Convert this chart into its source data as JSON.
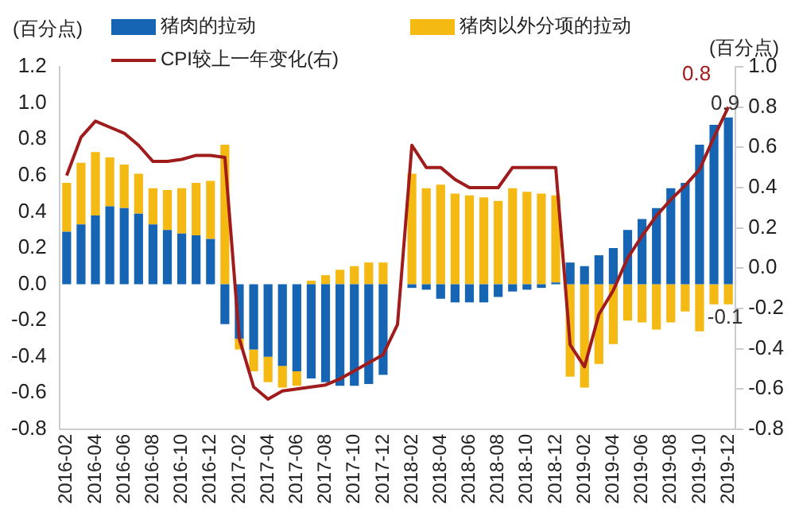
{
  "chart_data": {
    "type": "bar",
    "stacked": true,
    "legend": "top",
    "ylabel": "(百分点)",
    "y2label": "(百分点)",
    "categories": [
      "2016-02",
      null,
      "2016-04",
      null,
      "2016-06",
      null,
      "2016-08",
      null,
      "2016-10",
      null,
      "2016-12",
      null,
      "2017-02",
      null,
      "2017-04",
      null,
      "2017-06",
      null,
      "2017-08",
      null,
      "2017-10",
      null,
      "2017-12",
      null,
      "2018-02",
      null,
      "2018-04",
      null,
      "2018-06",
      null,
      "2018-08",
      null,
      "2018-10",
      null,
      "2018-12",
      null,
      "2019-02",
      null,
      "2019-04",
      null,
      "2019-06",
      null,
      "2019-08",
      null,
      "2019-10",
      null,
      "2019-12"
    ],
    "series": [
      {
        "name": "猪肉的拉动",
        "color": "#1565b4",
        "values": [
          0.29,
          0.33,
          0.38,
          0.43,
          0.42,
          0.39,
          0.33,
          0.3,
          0.28,
          0.27,
          0.25,
          -0.22,
          -0.3,
          -0.36,
          -0.4,
          -0.45,
          -0.48,
          -0.52,
          -0.54,
          -0.56,
          -0.56,
          -0.55,
          -0.5,
          null,
          -0.02,
          -0.03,
          -0.08,
          -0.1,
          -0.1,
          -0.1,
          -0.07,
          -0.04,
          -0.03,
          -0.02,
          0.01,
          0.12,
          0.1,
          0.16,
          0.2,
          0.3,
          0.36,
          0.42,
          0.53,
          0.56,
          0.77,
          0.88,
          0.92
        ],
        "value_labels": [
          null,
          null,
          null,
          null,
          null,
          null,
          null,
          null,
          null,
          null,
          null,
          null,
          null,
          null,
          null,
          null,
          null,
          null,
          null,
          null,
          null,
          null,
          null,
          null,
          null,
          null,
          null,
          null,
          null,
          null,
          null,
          null,
          null,
          null,
          null,
          null,
          null,
          null,
          null,
          null,
          null,
          null,
          null,
          null,
          null,
          null,
          "0.9"
        ]
      },
      {
        "name": "猪肉以外分项的拉动",
        "color": "#f5b914",
        "values": [
          0.27,
          0.34,
          0.35,
          0.27,
          0.24,
          0.22,
          0.2,
          0.22,
          0.25,
          0.29,
          0.32,
          0.77,
          -0.06,
          -0.12,
          -0.14,
          -0.12,
          -0.08,
          0.02,
          0.05,
          0.08,
          0.1,
          0.12,
          0.12,
          null,
          0.61,
          0.53,
          0.55,
          0.5,
          0.49,
          0.48,
          0.46,
          0.53,
          0.51,
          0.5,
          0.48,
          -0.51,
          -0.57,
          -0.44,
          -0.33,
          -0.2,
          -0.21,
          -0.25,
          -0.21,
          -0.15,
          -0.26,
          -0.11,
          -0.11
        ],
        "value_labels": [
          null,
          null,
          null,
          null,
          null,
          null,
          null,
          null,
          null,
          null,
          null,
          null,
          null,
          null,
          null,
          null,
          null,
          null,
          null,
          null,
          null,
          null,
          null,
          null,
          null,
          null,
          null,
          null,
          null,
          null,
          null,
          null,
          null,
          null,
          null,
          null,
          null,
          null,
          null,
          null,
          null,
          null,
          null,
          null,
          null,
          null,
          "-0.1"
        ]
      },
      {
        "name": "CPI较上一年变化(右)",
        "type": "line",
        "axis": "y2",
        "color": "#a01c1c",
        "values": [
          0.46,
          0.65,
          0.73,
          0.7,
          0.67,
          0.61,
          0.53,
          0.53,
          0.54,
          0.56,
          0.56,
          0.55,
          -0.35,
          -0.59,
          -0.65,
          -0.61,
          -0.6,
          -0.59,
          -0.58,
          -0.55,
          -0.51,
          -0.47,
          -0.43,
          -0.28,
          0.61,
          0.5,
          0.5,
          0.44,
          0.4,
          0.4,
          0.4,
          0.5,
          0.5,
          0.5,
          0.5,
          -0.38,
          -0.49,
          -0.23,
          -0.11,
          0.05,
          0.16,
          0.26,
          0.34,
          0.41,
          0.49,
          0.65,
          0.8
        ],
        "value_labels": [
          null,
          null,
          null,
          null,
          null,
          null,
          null,
          null,
          null,
          null,
          null,
          null,
          null,
          null,
          null,
          null,
          null,
          null,
          null,
          null,
          null,
          null,
          null,
          null,
          null,
          null,
          null,
          null,
          null,
          null,
          null,
          null,
          null,
          null,
          null,
          null,
          null,
          null,
          null,
          null,
          null,
          null,
          null,
          null,
          null,
          null,
          "0.8"
        ]
      }
    ],
    "ylim": [
      -0.8,
      1.2
    ],
    "yticks": [
      {
        "value": -0.8,
        "label": "-0.8"
      },
      {
        "value": -0.6,
        "label": "-0.6"
      },
      {
        "value": -0.4,
        "label": "-0.4"
      },
      {
        "value": -0.2,
        "label": "-0.2"
      },
      {
        "value": 0,
        "label": "0.0"
      },
      {
        "value": 0.2,
        "label": "0.2"
      },
      {
        "value": 0.4,
        "label": "0.4"
      },
      {
        "value": 0.6,
        "label": "0.6"
      },
      {
        "value": 0.8,
        "label": "0.8"
      },
      {
        "value": 1,
        "label": "1.0"
      },
      {
        "value": 1.2,
        "label": "1.2"
      }
    ],
    "y2lim": [
      -0.8,
      1.0
    ],
    "y2ticks": [
      {
        "value": -0.8,
        "label": "-0.8"
      },
      {
        "value": -0.6,
        "label": "-0.6"
      },
      {
        "value": -0.4,
        "label": "-0.4"
      },
      {
        "value": -0.2,
        "label": "-0.2"
      },
      {
        "value": 0,
        "label": "0.0"
      },
      {
        "value": 0.2,
        "label": "0.2"
      },
      {
        "value": 0.4,
        "label": "0.4"
      },
      {
        "value": 0.6,
        "label": "0.6"
      },
      {
        "value": 0.8,
        "label": "0.8"
      },
      {
        "value": 1,
        "label": "1.0"
      }
    ],
    "grid": false
  }
}
